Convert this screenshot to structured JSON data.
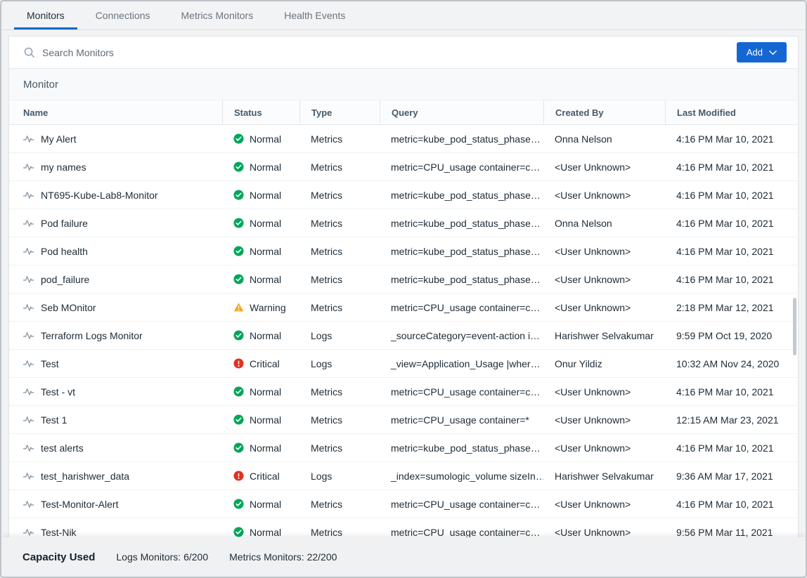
{
  "tabs": [
    {
      "label": "Monitors",
      "active": true
    },
    {
      "label": "Connections",
      "active": false
    },
    {
      "label": "Metrics Monitors",
      "active": false
    },
    {
      "label": "Health Events",
      "active": false
    }
  ],
  "toolbar": {
    "search_placeholder": "Search Monitors",
    "add_label": "Add"
  },
  "section": {
    "title": "Monitor"
  },
  "table": {
    "columns": {
      "name": "Name",
      "status": "Status",
      "type": "Type",
      "query": "Query",
      "created_by": "Created By",
      "last_modified": "Last Modified"
    },
    "rows": [
      {
        "name": "My Alert",
        "status": "Normal",
        "status_kind": "normal",
        "type": "Metrics",
        "query": "metric=kube_pod_status_phase…",
        "created_by": "Onna Nelson",
        "last_modified": "4:16 PM Mar 10, 2021"
      },
      {
        "name": "my names",
        "status": "Normal",
        "status_kind": "normal",
        "type": "Metrics",
        "query": "metric=CPU_usage container=c…",
        "created_by": "<User Unknown>",
        "last_modified": "4:16 PM Mar 10, 2021"
      },
      {
        "name": "NT695-Kube-Lab8-Monitor",
        "status": "Normal",
        "status_kind": "normal",
        "type": "Metrics",
        "query": "metric=kube_pod_status_phase…",
        "created_by": "<User Unknown>",
        "last_modified": "4:16 PM Mar 10, 2021"
      },
      {
        "name": "Pod failure",
        "status": "Normal",
        "status_kind": "normal",
        "type": "Metrics",
        "query": "metric=kube_pod_status_phase…",
        "created_by": "Onna Nelson",
        "last_modified": "4:16 PM Mar 10, 2021"
      },
      {
        "name": "Pod health",
        "status": "Normal",
        "status_kind": "normal",
        "type": "Metrics",
        "query": "metric=kube_pod_status_phase…",
        "created_by": "<User Unknown>",
        "last_modified": "4:16 PM Mar 10, 2021"
      },
      {
        "name": "pod_failure",
        "status": "Normal",
        "status_kind": "normal",
        "type": "Metrics",
        "query": "metric=kube_pod_status_phase…",
        "created_by": "<User Unknown>",
        "last_modified": "4:16 PM Mar 10, 2021"
      },
      {
        "name": "Seb MOnitor",
        "status": "Warning",
        "status_kind": "warning",
        "type": "Metrics",
        "query": "metric=CPU_usage container=c…",
        "created_by": "<User Unknown>",
        "last_modified": "2:18 PM Mar 12, 2021"
      },
      {
        "name": "Terraform Logs Monitor",
        "status": "Normal",
        "status_kind": "normal",
        "type": "Logs",
        "query": "_sourceCategory=event-action i…",
        "created_by": "Harishwer Selvakumar",
        "last_modified": "9:59 PM Oct 19, 2020"
      },
      {
        "name": "Test",
        "status": "Critical",
        "status_kind": "critical",
        "type": "Logs",
        "query": "_view=Application_Usage |wher…",
        "created_by": "Onur Yildiz",
        "last_modified": "10:32 AM Nov 24, 2020"
      },
      {
        "name": "Test - vt",
        "status": "Normal",
        "status_kind": "normal",
        "type": "Metrics",
        "query": "metric=CPU_usage container=c…",
        "created_by": "<User Unknown>",
        "last_modified": "4:16 PM Mar 10, 2021"
      },
      {
        "name": "Test 1",
        "status": "Normal",
        "status_kind": "normal",
        "type": "Metrics",
        "query": "metric=CPU_usage container=*",
        "created_by": "<User Unknown>",
        "last_modified": "12:15 AM Mar 23, 2021"
      },
      {
        "name": "test alerts",
        "status": "Normal",
        "status_kind": "normal",
        "type": "Metrics",
        "query": "metric=kube_pod_status_phase…",
        "created_by": "<User Unknown>",
        "last_modified": "4:16 PM Mar 10, 2021"
      },
      {
        "name": "test_harishwer_data",
        "status": "Critical",
        "status_kind": "critical",
        "type": "Logs",
        "query": "_index=sumologic_volume sizeIn…",
        "created_by": "Harishwer Selvakumar",
        "last_modified": "9:36 AM Mar 17, 2021"
      },
      {
        "name": "Test-Monitor-Alert",
        "status": "Normal",
        "status_kind": "normal",
        "type": "Metrics",
        "query": "metric=CPU_usage container=c…",
        "created_by": "<User Unknown>",
        "last_modified": "4:16 PM Mar 10, 2021"
      },
      {
        "name": "Test-Nik",
        "status": "Normal",
        "status_kind": "normal",
        "type": "Metrics",
        "query": "metric=CPU_usage container=c…",
        "created_by": "<User Unknown>",
        "last_modified": "9:56 PM Mar 11, 2021"
      }
    ]
  },
  "footer": {
    "capacity_label": "Capacity Used",
    "logs_monitors": "Logs Monitors: 6/200",
    "metrics_monitors": "Metrics Monitors: 22/200"
  },
  "colors": {
    "accent_blue": "#1467d2",
    "tab_underline_blue": "#1169d0",
    "status_normal_green": "#00a65a",
    "status_warning_orange": "#f5a623",
    "status_critical_red": "#e0321f"
  },
  "icons": {
    "search": "magnifier",
    "add_button": "chevron-down",
    "monitor_row": "pulse-line",
    "status_normal": "check-circle",
    "status_warning": "warning-triangle",
    "status_critical": "exclamation-circle"
  }
}
